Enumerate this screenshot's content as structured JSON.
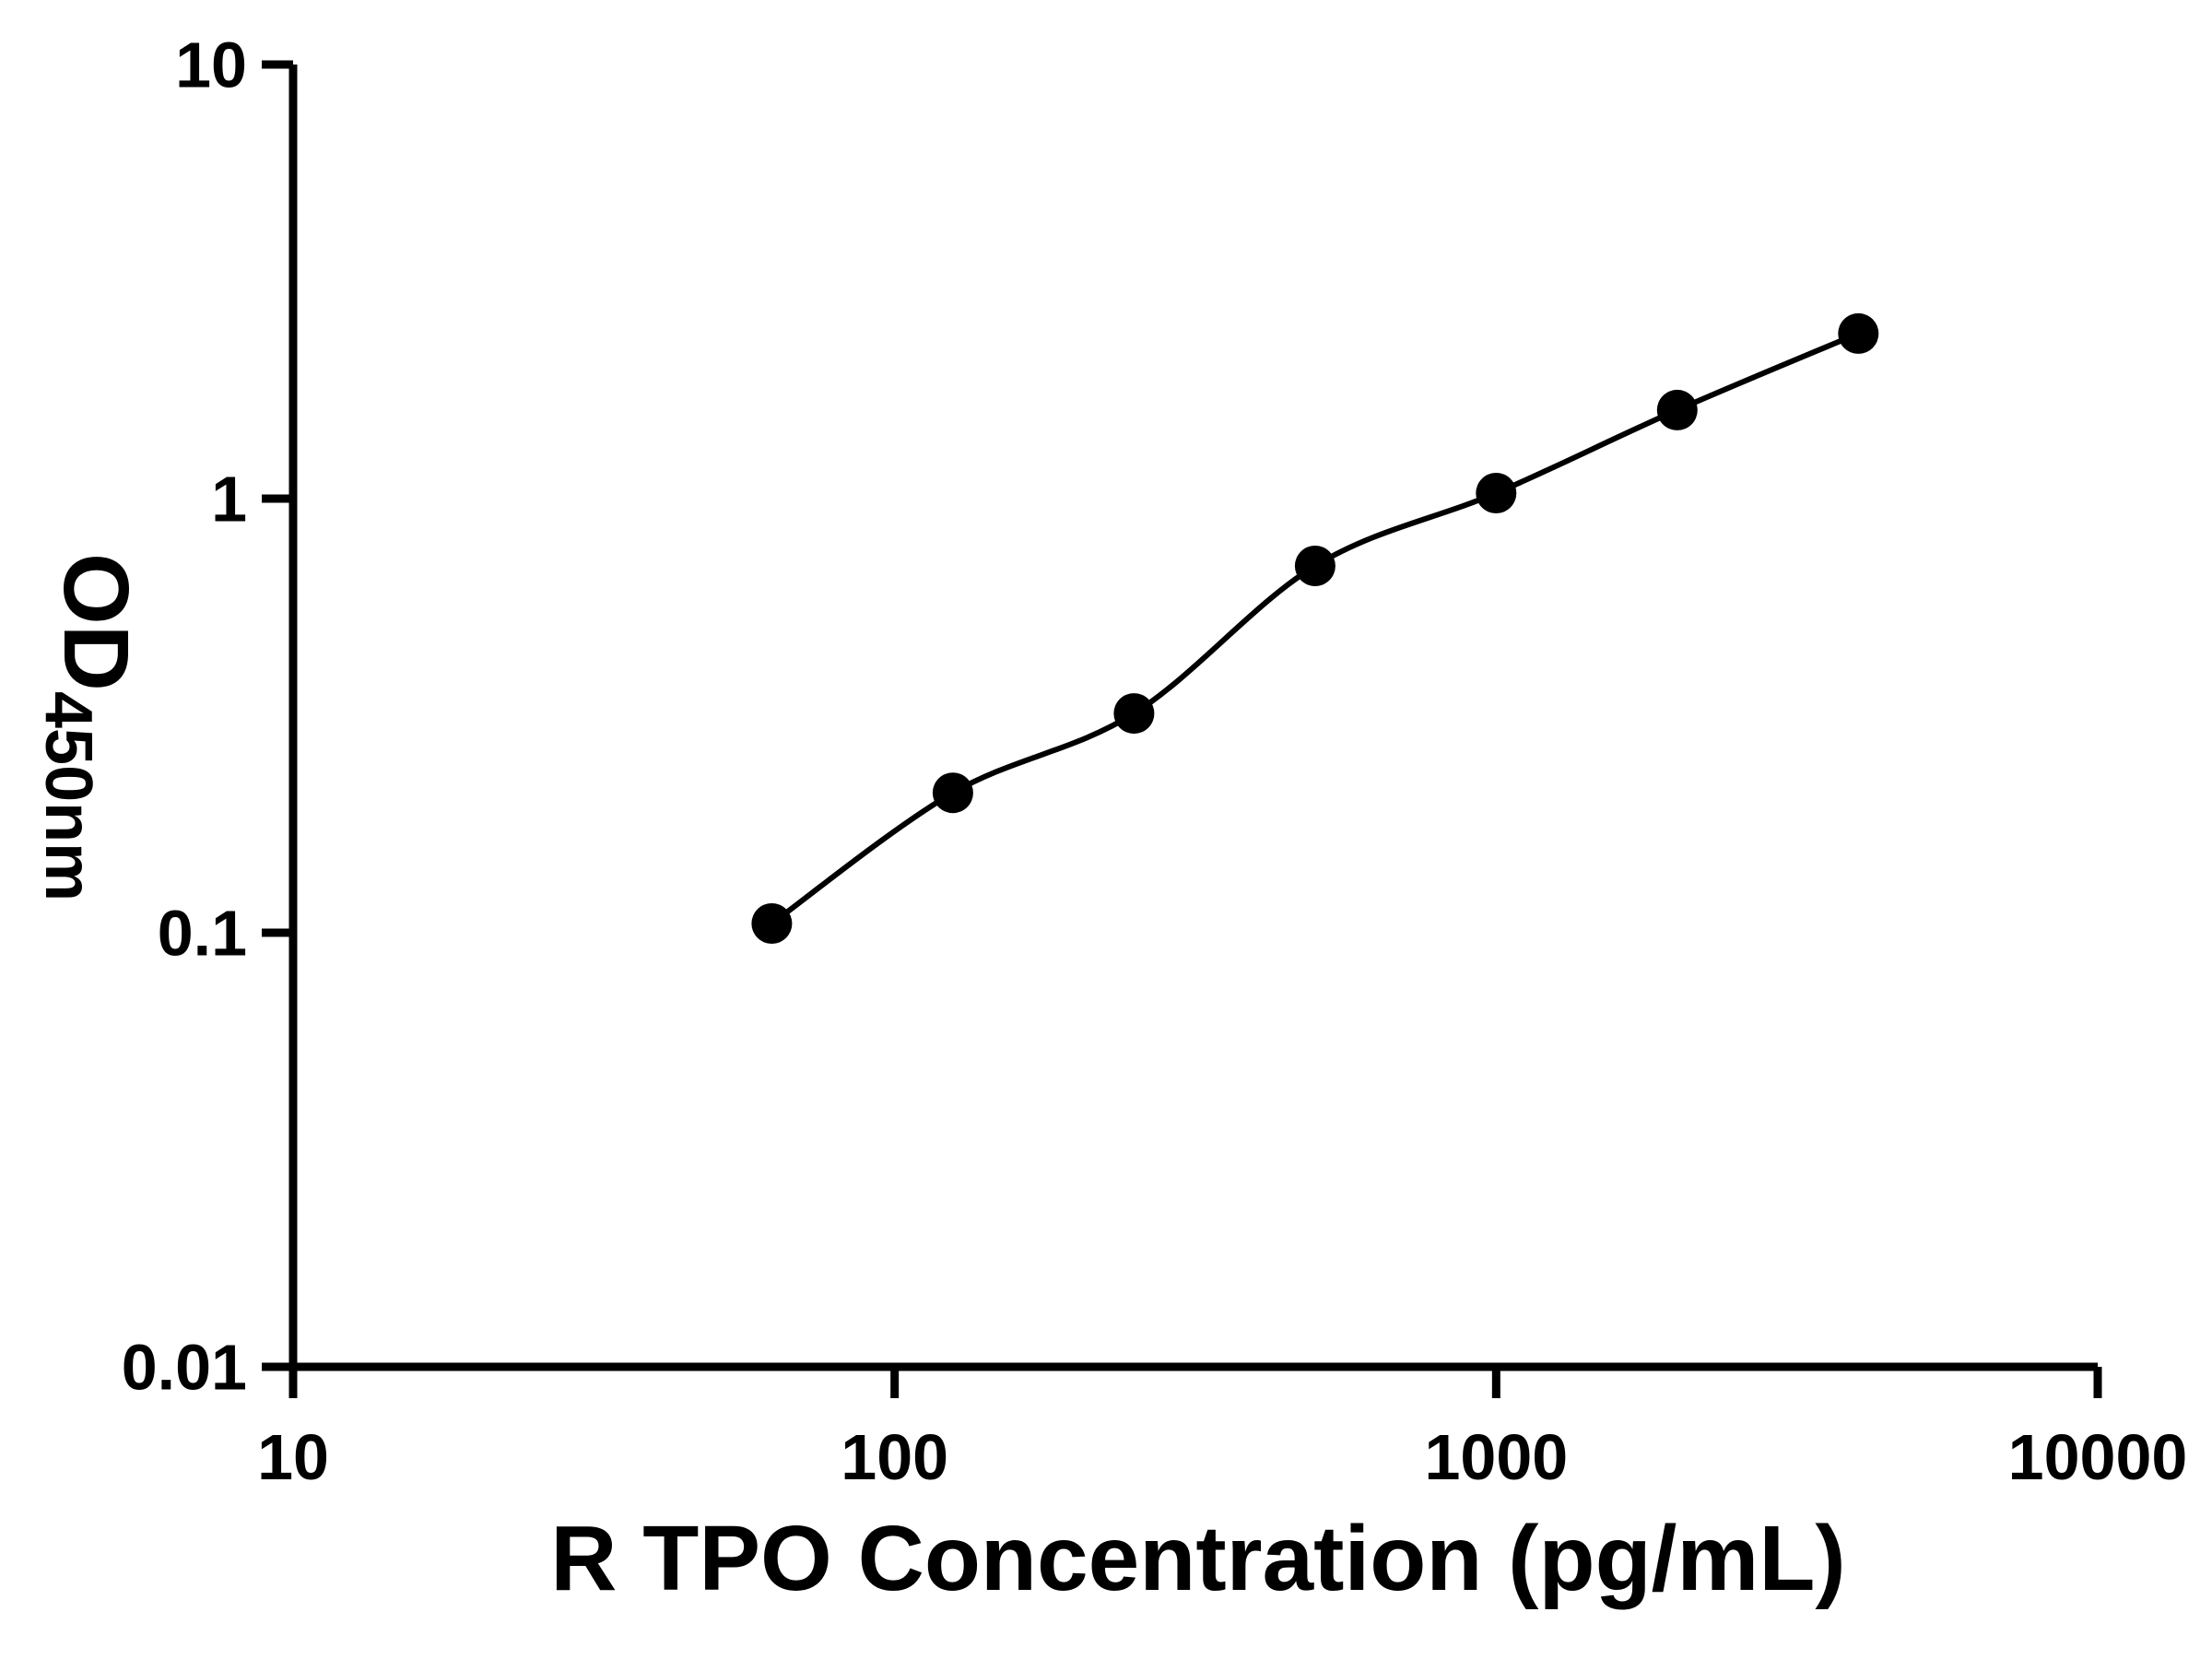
{
  "page": {
    "background_color": "#ffffff",
    "foreground_color": "#000000"
  },
  "chart_data": {
    "type": "scatter",
    "title": "",
    "xlabel": "R TPO Concentration (pg/mL)",
    "ylabel": "OD",
    "ylabel_sub": "450nm",
    "x_scale": "log",
    "y_scale": "log",
    "xlim": [
      10,
      10000
    ],
    "ylim": [
      0.01,
      10
    ],
    "x_ticks": [
      10,
      100,
      1000,
      10000
    ],
    "x_tick_labels": [
      "10",
      "100",
      "1000",
      "10000"
    ],
    "y_ticks": [
      0.01,
      0.1,
      1,
      10
    ],
    "y_tick_labels": [
      "0.01",
      "0.1",
      "1",
      "10"
    ],
    "grid": false,
    "legend": "none",
    "marker_color": "#000000",
    "line_color": "#000000",
    "axis_color": "#000000",
    "series": [
      {
        "id": "standard-curve",
        "marker": "filled-circle",
        "fit_line": true,
        "points": [
          {
            "x": 62.5,
            "y": 0.105
          },
          {
            "x": 125,
            "y": 0.21
          },
          {
            "x": 250,
            "y": 0.32
          },
          {
            "x": 500,
            "y": 0.7
          },
          {
            "x": 1000,
            "y": 1.03
          },
          {
            "x": 2000,
            "y": 1.6
          },
          {
            "x": 4000,
            "y": 2.4
          }
        ]
      }
    ]
  }
}
